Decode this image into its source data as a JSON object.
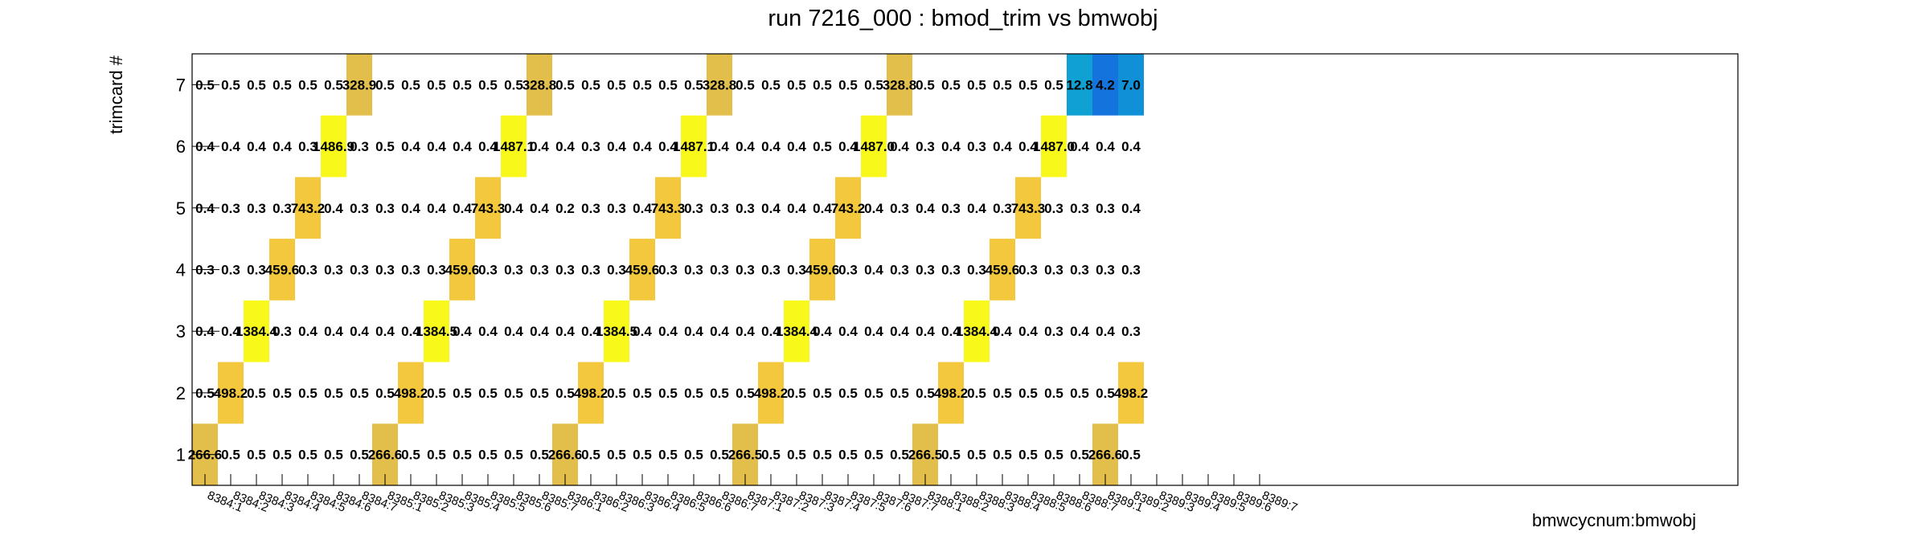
{
  "chart_data": {
    "type": "heatmap",
    "title": "run 7216_000 : bmod_trim vs bmwobj",
    "xlabel": "bmwcycnum:bmwobj",
    "ylabel": "trimcard #",
    "categories": [
      "8384:1",
      "8384:2",
      "8384:3",
      "8384:4",
      "8384:5",
      "8384:6",
      "8384:7",
      "8385:1",
      "8385:2",
      "8385:3",
      "8385:4",
      "8385:5",
      "8385:6",
      "8385:7",
      "8386:1",
      "8386:2",
      "8386:3",
      "8386:4",
      "8386:5",
      "8386:6",
      "8386:7",
      "8387:1",
      "8387:2",
      "8387:3",
      "8387:4",
      "8387:5",
      "8387:6",
      "8387:7",
      "8388:1",
      "8388:2",
      "8388:3",
      "8388:4",
      "8388:5",
      "8388:6",
      "8388:7",
      "8389:1",
      "8389:2",
      "8389:3",
      "8389:4",
      "8389:5",
      "8389:6",
      "8389:7"
    ],
    "y_categories": [
      "1",
      "2",
      "3",
      "4",
      "5",
      "6",
      "7"
    ],
    "grid": false,
    "rows": {
      "1": [
        "266.6",
        "0.5",
        "0.5",
        "0.5",
        "0.5",
        "0.5",
        "0.5",
        "266.6",
        "0.5",
        "0.5",
        "0.5",
        "0.5",
        "0.5",
        "0.5",
        "266.6",
        "0.5",
        "0.5",
        "0.5",
        "0.5",
        "0.5",
        "0.5",
        "266.5",
        "0.5",
        "0.5",
        "0.5",
        "0.5",
        "0.5",
        "0.5",
        "266.5",
        "0.5",
        "0.5",
        "0.5",
        "0.5",
        "0.5",
        "0.5",
        "266.6",
        "0.5",
        null,
        null,
        null,
        null,
        null
      ],
      "2": [
        "0.5",
        "498.2",
        "0.5",
        "0.5",
        "0.5",
        "0.5",
        "0.5",
        "0.5",
        "498.2",
        "0.5",
        "0.5",
        "0.5",
        "0.5",
        "0.5",
        "0.5",
        "498.2",
        "0.5",
        "0.5",
        "0.5",
        "0.5",
        "0.5",
        "0.5",
        "498.2",
        "0.5",
        "0.5",
        "0.5",
        "0.5",
        "0.5",
        "0.5",
        "498.2",
        "0.5",
        "0.5",
        "0.5",
        "0.5",
        "0.5",
        "0.5",
        "498.2",
        null,
        null,
        null,
        null,
        null
      ],
      "3": [
        "0.4",
        "0.4",
        "1384.4",
        "0.3",
        "0.4",
        "0.4",
        "0.4",
        "0.4",
        "0.4",
        "1384.5",
        "0.4",
        "0.4",
        "0.4",
        "0.4",
        "0.4",
        "0.4",
        "1384.5",
        "0.4",
        "0.4",
        "0.4",
        "0.4",
        "0.4",
        "0.4",
        "1384.4",
        "0.4",
        "0.4",
        "0.4",
        "0.4",
        "0.4",
        "0.4",
        "1384.4",
        "0.4",
        "0.4",
        "0.3",
        "0.4",
        "0.4",
        "0.3",
        null,
        null,
        null,
        null,
        null
      ],
      "4": [
        "0.3",
        "0.3",
        "0.3",
        "459.6",
        "0.3",
        "0.3",
        "0.3",
        "0.3",
        "0.3",
        "0.3",
        "459.6",
        "0.3",
        "0.3",
        "0.3",
        "0.3",
        "0.3",
        "0.3",
        "459.6",
        "0.3",
        "0.3",
        "0.3",
        "0.3",
        "0.3",
        "0.3",
        "459.6",
        "0.3",
        "0.4",
        "0.3",
        "0.3",
        "0.3",
        "0.3",
        "459.6",
        "0.3",
        "0.3",
        "0.3",
        "0.3",
        "0.3",
        null,
        null,
        null,
        null,
        null
      ],
      "5": [
        "0.4",
        "0.3",
        "0.3",
        "0.3",
        "743.2",
        "0.4",
        "0.3",
        "0.3",
        "0.4",
        "0.4",
        "0.4",
        "743.3",
        "0.4",
        "0.4",
        "0.2",
        "0.3",
        "0.3",
        "0.4",
        "743.3",
        "0.3",
        "0.3",
        "0.3",
        "0.4",
        "0.4",
        "0.4",
        "743.2",
        "0.4",
        "0.3",
        "0.4",
        "0.3",
        "0.4",
        "0.3",
        "743.3",
        "0.3",
        "0.3",
        "0.3",
        "0.4",
        null,
        null,
        null,
        null,
        null
      ],
      "6": [
        "0.4",
        "0.4",
        "0.4",
        "0.4",
        "0.3",
        "1486.9",
        "0.3",
        "0.5",
        "0.4",
        "0.4",
        "0.4",
        "0.4",
        "1487.1",
        "0.4",
        "0.4",
        "0.3",
        "0.4",
        "0.4",
        "0.4",
        "1487.1",
        "0.4",
        "0.4",
        "0.4",
        "0.4",
        "0.5",
        "0.4",
        "1487.0",
        "0.4",
        "0.3",
        "0.4",
        "0.3",
        "0.4",
        "0.4",
        "1487.0",
        "0.4",
        "0.4",
        "0.4",
        null,
        null,
        null,
        null,
        null
      ],
      "7": [
        "0.5",
        "0.5",
        "0.5",
        "0.5",
        "0.5",
        "0.5",
        "328.9",
        "0.5",
        "0.5",
        "0.5",
        "0.5",
        "0.5",
        "0.5",
        "328.8",
        "0.5",
        "0.5",
        "0.5",
        "0.5",
        "0.5",
        "0.5",
        "328.8",
        "0.5",
        "0.5",
        "0.5",
        "0.5",
        "0.5",
        "0.5",
        "328.8",
        "0.5",
        "0.5",
        "0.5",
        "0.5",
        "0.5",
        "0.5",
        "12.8",
        "4.2",
        "7.0",
        null,
        null,
        null,
        null,
        null
      ]
    },
    "colors": {
      "high": "#f8f81a",
      "mid": "#f3c83c",
      "low_mid": "#e2be4a",
      "cyan": "#0fa1d2",
      "blue_dark": "#1473dc",
      "blue_mid": "#1090d6"
    }
  }
}
